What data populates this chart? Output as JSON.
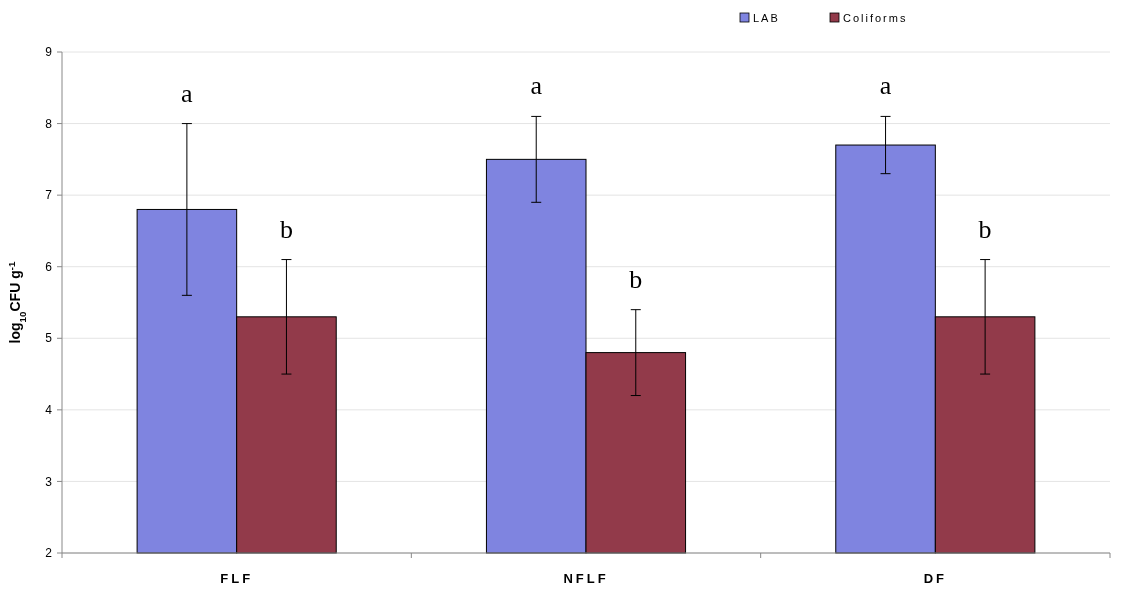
{
  "chart_data": {
    "type": "bar",
    "ylabel": "log$_{10}$CFU g$^{-1}$",
    "categories": [
      "FLF",
      "NFLF",
      "DF"
    ],
    "series": [
      {
        "name": "LAB",
        "color": "#7f84e0",
        "values": [
          6.8,
          7.5,
          7.7
        ],
        "errors": [
          [
            5.6,
            8.0
          ],
          [
            6.9,
            8.1
          ],
          [
            7.3,
            8.1
          ]
        ]
      },
      {
        "name": "Coliforms",
        "color": "#923a4a",
        "values": [
          5.3,
          4.8,
          5.3
        ],
        "errors": [
          [
            4.5,
            6.1
          ],
          [
            4.2,
            5.4
          ],
          [
            4.5,
            6.1
          ]
        ]
      }
    ],
    "ylim": [
      2,
      9
    ],
    "yticks": [
      2,
      3,
      4,
      5,
      6,
      7,
      8,
      9
    ],
    "grid": "y",
    "legend": "top right",
    "annotations": [
      "a",
      "b",
      "a",
      "b",
      "a",
      "b"
    ]
  }
}
